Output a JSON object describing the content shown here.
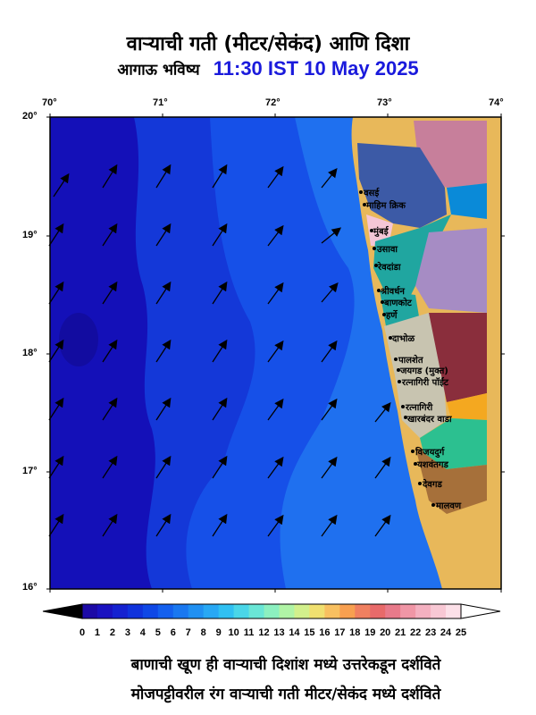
{
  "title": "वाऱ्याची गती (मीटर/सेकंद) आणि दिशा",
  "subtitle_label": "आगाऊ भविष्य",
  "forecast_time": "11:30 IST 10 May 2025",
  "lon_labels": [
    "70°",
    "71°",
    "72°",
    "73°",
    "74°"
  ],
  "lat_labels": [
    "20°",
    "19°",
    "18°",
    "17°",
    "16°"
  ],
  "colorbar": {
    "ticks": [
      "0",
      "1",
      "2",
      "3",
      "4",
      "5",
      "6",
      "7",
      "8",
      "9",
      "10",
      "11",
      "12",
      "13",
      "14",
      "15",
      "16",
      "17",
      "18",
      "19",
      "20",
      "21",
      "22",
      "23",
      "24",
      "25"
    ],
    "colors": [
      "#1c0aa6",
      "#1a12c0",
      "#1522d0",
      "#1033dc",
      "#0f48e6",
      "#1460ee",
      "#1a78f0",
      "#2090f2",
      "#28a8f4",
      "#30c0f2",
      "#4ad6e8",
      "#6ae6d6",
      "#8cf0c0",
      "#b0f4a6",
      "#d2f08c",
      "#f0e070",
      "#f8c060",
      "#f8a050",
      "#f08060",
      "#e86a6a",
      "#e87a8a",
      "#f096a6",
      "#f4b0c0",
      "#f8c8d4",
      "#fce0e8"
    ]
  },
  "places": [
    {
      "name": "वसई"
    },
    {
      "name": "माहिम क्रिक"
    },
    {
      "name": "मुंबई"
    },
    {
      "name": "उसावा"
    },
    {
      "name": "रेवदांडा"
    },
    {
      "name": "श्रीवर्धन"
    },
    {
      "name": "बाणकोट"
    },
    {
      "name": "हर्णे"
    },
    {
      "name": "दाभोळ"
    },
    {
      "name": "पालशेत"
    },
    {
      "name": "जयगड (मुक्त)"
    },
    {
      "name": "रत्नागिरी पॉईंट"
    },
    {
      "name": "रत्नागिरी"
    },
    {
      "name": "खारबंदर वाडा"
    },
    {
      "name": "विजयदुर्ग"
    },
    {
      "name": "यशवंतगड"
    },
    {
      "name": "देवगड"
    },
    {
      "name": "मालवण"
    }
  ],
  "notes": [
    "बाणाची खूण ही वाऱ्याची  दिशांश मध्ये उत्तरेकडून दर्शविते",
    "मोजपट्टीवरील रंग वाऱ्याची गती मीटर/सेकंद मध्ये दर्शविते"
  ],
  "colors": {
    "ocean_dark": "#1410b8",
    "ocean_mid": "#1650e8",
    "ocean_light": "#1f78f0",
    "land": "#e8b85a",
    "title_time": "#1a1adc"
  }
}
